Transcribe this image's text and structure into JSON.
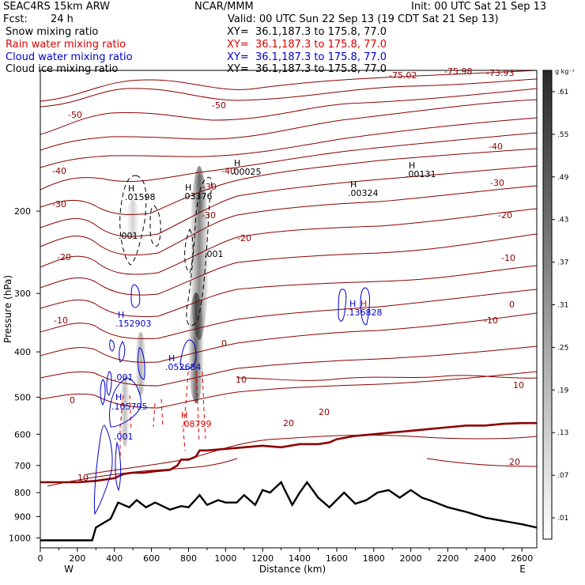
{
  "header": {
    "model": "SEAC4RS 15km ARW",
    "center": "NCAR/MMM",
    "init": "Init: 00 UTC Sat 21 Sep 13",
    "fcst_label": "Fcst:",
    "fcst_value": "24 h",
    "valid": "Valid: 00 UTC Sun 22 Sep 13 (19 CDT Sat 21 Sep 13)"
  },
  "fields": [
    {
      "name": "Snow mixing ratio",
      "xy": "XY=  36.1,187.3 to 175.8, 77.0",
      "color": "#000000"
    },
    {
      "name": "Rain water mixing ratio",
      "xy": "XY=  36.1,187.3 to 175.8, 77.0",
      "color": "#dd0000"
    },
    {
      "name": "Cloud water mixing ratio",
      "xy": "XY=  36.1,187.3 to 175.8, 77.0",
      "color": "#0000cc"
    },
    {
      "name": "Cloud ice mixing ratio",
      "xy": "XY=  36.1,187.3 to 175.8, 77.0",
      "color": "#000000"
    }
  ],
  "colors": {
    "temperature": "#8b0000",
    "freezing": "#8b0000",
    "terrain": "#000000",
    "rain": "#dd0000",
    "cloud": "#0000cc",
    "snow": "#000000"
  },
  "chart_data": {
    "type": "contour",
    "xlabel": "Distance (km)",
    "ylabel": "Pressure (hPa)",
    "xlim": [
      0,
      2680
    ],
    "ylim": [
      1050,
      100
    ],
    "y_scale": "log",
    "x_ticks": [
      "0",
      "200",
      "400",
      "600",
      "800",
      "1000",
      "1200",
      "1400",
      "1600",
      "1800",
      "2000",
      "2200",
      "2400",
      "2600"
    ],
    "y_ticks": [
      "200",
      "300",
      "400",
      "500",
      "600",
      "700",
      "800",
      "900",
      "1000"
    ],
    "west_label": "W",
    "east_label": "E",
    "colorbar": {
      "unit": "g kg⁻¹",
      "ticks": [
        ".01",
        ".07",
        ".13",
        ".19",
        ".25",
        ".31",
        ".37",
        ".43",
        ".49",
        ".55",
        ".61"
      ]
    },
    "temperature_labels": [
      "-50",
      "-50",
      "-40",
      "-40",
      "-40",
      "-30",
      "-30",
      "-30",
      "-30",
      "-20",
      "-20",
      "-20",
      "-10",
      "-10",
      "-10",
      "0",
      "0",
      "0",
      "10",
      "10",
      "10",
      "20",
      "20",
      "20",
      "-73.93",
      "-75.98",
      "-75.02"
    ],
    "maxima": [
      {
        "H": "H",
        "value": ".01598",
        "color": "#000000"
      },
      {
        "H": "H",
        "value": ".03376",
        "color": "#000000"
      },
      {
        "H": "H",
        "value": ".00025",
        "color": "#000000"
      },
      {
        "H": "H",
        "value": ".00324",
        "color": "#000000"
      },
      {
        "H": "H",
        "value": ".00131",
        "color": "#000000"
      },
      {
        "H": "H",
        "value": ".152903",
        "color": "#0000cc"
      },
      {
        "H": "H",
        "value": ".052684",
        "color": "#0000cc"
      },
      {
        "H": "H",
        "value": ".105795",
        "color": "#0000cc"
      },
      {
        "H": "H",
        "value": ".136828",
        "color": "#0000cc"
      },
      {
        "H": "H",
        "value": ".08799",
        "color": "#dd0000"
      }
    ],
    "contour_minor_labels": [
      ".001",
      ".001",
      ".001",
      ".001"
    ],
    "terrain": {
      "x": [
        0,
        280,
        300,
        380,
        420,
        450,
        480,
        520,
        570,
        620,
        700,
        760,
        800,
        860,
        900,
        960,
        1000,
        1060,
        1100,
        1160,
        1200,
        1240,
        1300,
        1320,
        1360,
        1400,
        1440,
        1500,
        1560,
        1640,
        1700,
        1760,
        1820,
        1880,
        1940,
        2000,
        2060,
        2100,
        2200,
        2300,
        2400,
        2500,
        2600,
        2680
      ],
      "p": [
        1012,
        1012,
        950,
        910,
        840,
        850,
        860,
        830,
        860,
        840,
        870,
        855,
        860,
        810,
        850,
        830,
        840,
        840,
        810,
        850,
        790,
        800,
        760,
        790,
        850,
        800,
        760,
        820,
        860,
        800,
        845,
        830,
        800,
        790,
        820,
        790,
        820,
        830,
        860,
        880,
        905,
        920,
        935,
        950
      ]
    },
    "freezing_level": {
      "x": [
        0,
        200,
        300,
        400,
        450,
        500,
        560,
        620,
        700,
        740,
        760,
        800,
        840,
        860,
        900,
        1000,
        1100,
        1200,
        1300,
        1400,
        1500,
        1560,
        1600,
        1700,
        1800,
        1900,
        2000,
        2100,
        2200,
        2300,
        2400,
        2500,
        2600,
        2680
      ],
      "p": [
        760,
        760,
        755,
        745,
        730,
        725,
        725,
        720,
        715,
        700,
        680,
        680,
        670,
        650,
        650,
        645,
        640,
        635,
        640,
        630,
        630,
        625,
        615,
        605,
        600,
        595,
        590,
        585,
        580,
        575,
        575,
        570,
        568,
        568
      ]
    }
  }
}
